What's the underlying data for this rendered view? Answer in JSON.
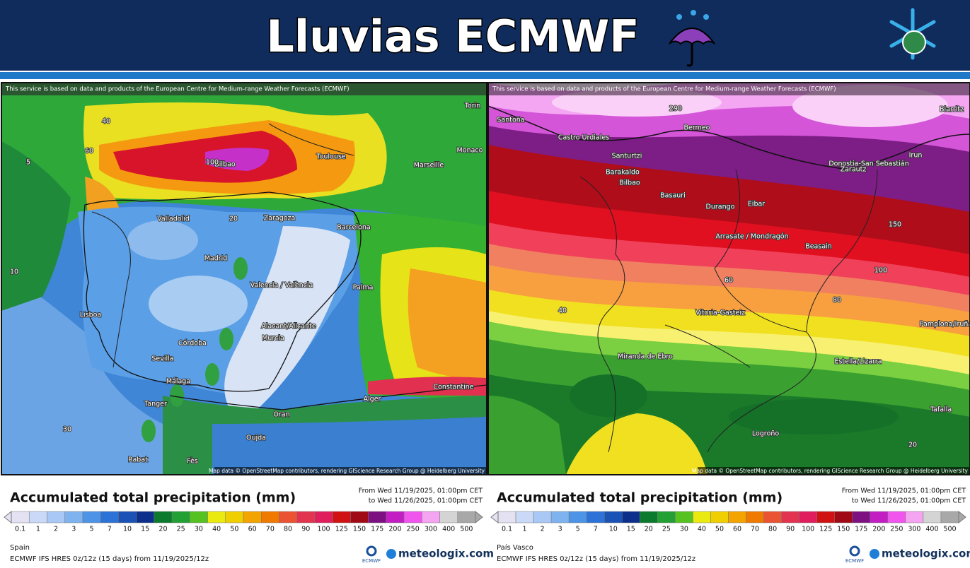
{
  "header": {
    "title": "Lluvias ECMWF"
  },
  "panels": [
    {
      "notice": "This service is based on data and products of the European Centre for Medium-range Weather Forecasts (ECMWF)",
      "places": [
        "Bilbao",
        "Toulouse",
        "Marseille",
        "Monaco",
        "Torin",
        "Valladolid",
        "Zaragoza",
        "Barcelona",
        "Madrid",
        "Valencia / València",
        "Palma",
        "Lisboa",
        "Córdoba",
        "Alacant/Alicante",
        "Murcia",
        "Sevilla",
        "Málaga",
        "Tanger",
        "Oran",
        "Alger",
        "Constantine",
        "Oujda",
        "Rabat",
        "Fès",
        "40",
        "60",
        "100",
        "20",
        "5",
        "10",
        "30"
      ],
      "attribution": "Map data © OpenStreetMap contributors, rendering GIScience Research Group @ Heidelberg University",
      "legend_title": "Accumulated total precipitation (mm)",
      "period": [
        "From Wed 11/19/2025, 01:00pm CET",
        "to Wed 11/26/2025, 01:00pm CET"
      ],
      "region": "Spain",
      "model": "ECMWF IFS HRES 0z/12z (15 days) from 11/19/2025/12z",
      "source_logo": "ECMWF",
      "brand": "meteologix.com"
    },
    {
      "notice": "This service is based on data and products of the European Centre for Medium-range Weather Forecasts (ECMWF)",
      "places": [
        "Santoña",
        "Castro Urdiales",
        "Bermeo",
        "Santurtzi",
        "Barakaldo",
        "Bilbao",
        "Basauri",
        "Durango",
        "Eibar",
        "Zarautz",
        "Donostia-San Sebastián",
        "Irun",
        "Biarritz",
        "Arrasate / Mondragón",
        "Beasain",
        "Vitoria-Gasteiz",
        "Miranda de Ebro",
        "Logroño",
        "Pamplona/Iruña",
        "Estella/Lizarra",
        "Tafalla",
        "290",
        "150",
        "100",
        "80",
        "60",
        "40",
        "20"
      ],
      "attribution": "Map data © OpenStreetMap contributors, rendering GIScience Research Group @ Heidelberg University",
      "legend_title": "Accumulated total precipitation (mm)",
      "period": [
        "From Wed 11/19/2025, 01:00pm CET",
        "to Wed 11/26/2025, 01:00pm CET"
      ],
      "region": "País Vasco",
      "model": "ECMWF IFS HRES 0z/12z (15 days) from 11/19/2025/12z",
      "source_logo": "ECMWF",
      "brand": "meteologix.com"
    }
  ],
  "scale": {
    "labels": [
      "0.1",
      "1",
      "2",
      "3",
      "5",
      "7",
      "10",
      "15",
      "20",
      "25",
      "30",
      "40",
      "50",
      "60",
      "70",
      "80",
      "90",
      "100",
      "125",
      "150",
      "175",
      "200",
      "250",
      "300",
      "400",
      "500"
    ],
    "colors": [
      "#e4e2f2",
      "#c9d9f7",
      "#a9c8f6",
      "#7fb3ef",
      "#4d93e6",
      "#2d72d6",
      "#1a52b6",
      "#0c2f8c",
      "#0b7a2c",
      "#22a033",
      "#55c222",
      "#eaea10",
      "#f0cf00",
      "#f3a400",
      "#f07a00",
      "#ea5432",
      "#e2344f",
      "#e01e5e",
      "#d01212",
      "#a00a14",
      "#7e1182",
      "#c21ec4",
      "#f055ee",
      "#f4a4f0",
      "#d4d4d4",
      "#a8a8a8"
    ]
  }
}
